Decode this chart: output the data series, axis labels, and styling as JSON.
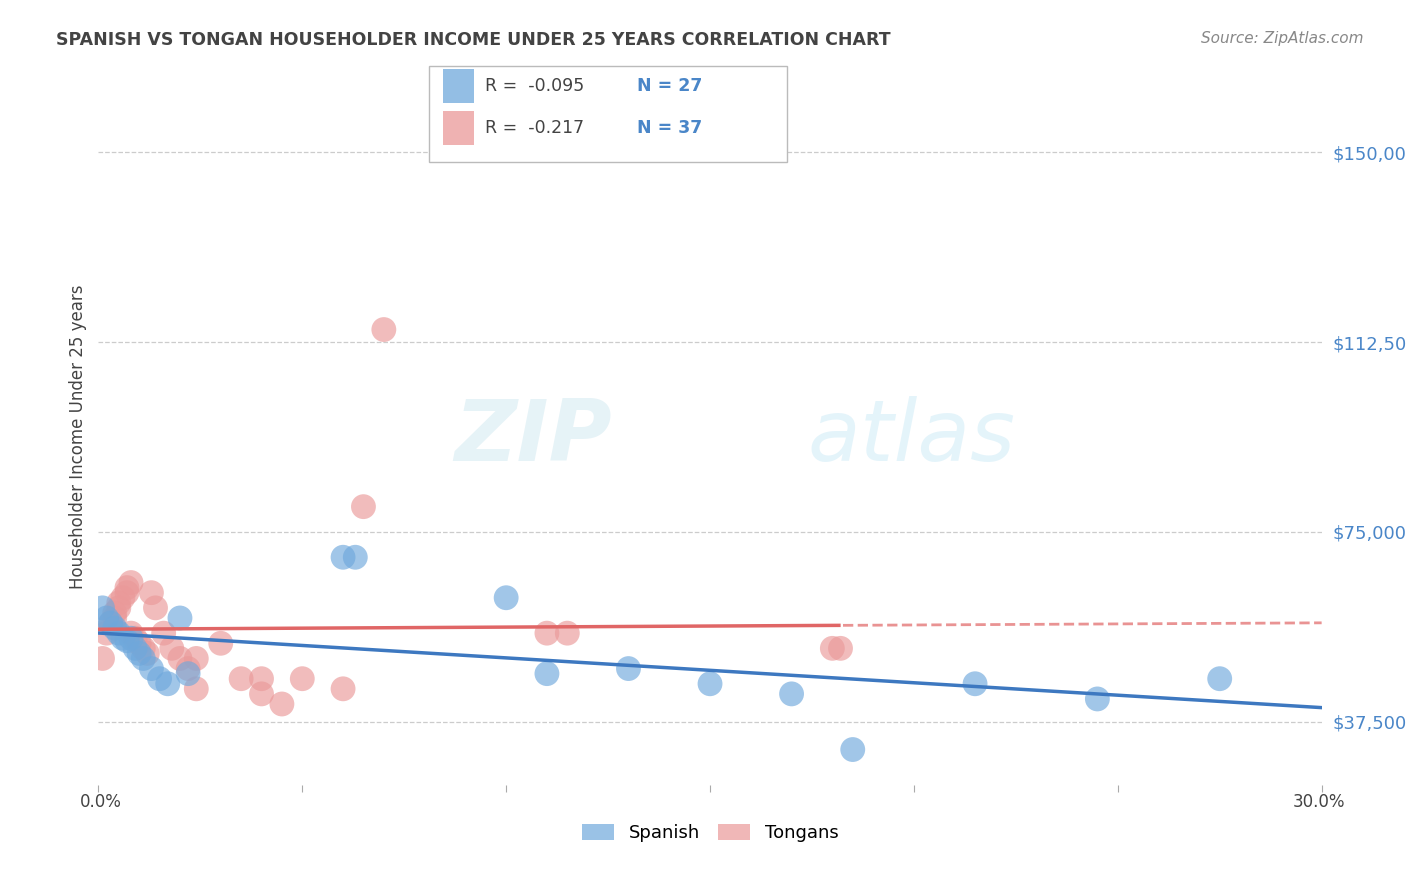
{
  "title": "SPANISH VS TONGAN HOUSEHOLDER INCOME UNDER 25 YEARS CORRELATION CHART",
  "source": "Source: ZipAtlas.com",
  "ylabel": "Householder Income Under 25 years",
  "yticks": [
    37500,
    75000,
    112500,
    150000
  ],
  "ytick_labels": [
    "$37,500",
    "$75,000",
    "$112,500",
    "$150,000"
  ],
  "xlim": [
    0.0,
    0.3
  ],
  "ylim": [
    25000,
    162500
  ],
  "legend_spanish_R": "-0.095",
  "legend_spanish_N": "27",
  "legend_tongan_R": "-0.217",
  "legend_tongan_N": "37",
  "spanish_color": "#6fa8dc",
  "tongan_color": "#ea9999",
  "trendline_spanish_color": "#3d78c0",
  "trendline_tongan_color": "#e06666",
  "background_color": "#ffffff",
  "grid_color": "#cccccc",
  "title_color": "#434343",
  "ylabel_color": "#434343",
  "yaxis_label_color": "#4a86c8",
  "watermark_zip": "ZIP",
  "watermark_atlas": "atlas",
  "spanish_x": [
    0.001,
    0.002,
    0.003,
    0.004,
    0.005,
    0.006,
    0.007,
    0.008,
    0.009,
    0.01,
    0.011,
    0.013,
    0.015,
    0.017,
    0.02,
    0.022,
    0.06,
    0.063,
    0.1,
    0.11,
    0.13,
    0.15,
    0.17,
    0.185,
    0.215,
    0.245,
    0.275
  ],
  "spanish_y": [
    60000,
    58000,
    57000,
    56000,
    55000,
    54000,
    53500,
    54000,
    52000,
    51000,
    50000,
    48000,
    46000,
    45000,
    58000,
    47000,
    70000,
    70000,
    62000,
    47000,
    48000,
    45000,
    43000,
    32000,
    45000,
    42000,
    46000
  ],
  "tongan_x": [
    0.001,
    0.002,
    0.003,
    0.004,
    0.004,
    0.005,
    0.005,
    0.006,
    0.007,
    0.007,
    0.008,
    0.008,
    0.009,
    0.01,
    0.011,
    0.012,
    0.013,
    0.014,
    0.016,
    0.018,
    0.02,
    0.022,
    0.024,
    0.024,
    0.03,
    0.035,
    0.04,
    0.04,
    0.045,
    0.05,
    0.06,
    0.11,
    0.115,
    0.18,
    0.182,
    0.065,
    0.07
  ],
  "tongan_y": [
    50000,
    55000,
    57000,
    58000,
    59000,
    60000,
    61000,
    62000,
    63000,
    64000,
    65000,
    55000,
    54000,
    53000,
    52000,
    51000,
    63000,
    60000,
    55000,
    52000,
    50000,
    48000,
    50000,
    44000,
    53000,
    46000,
    46000,
    43000,
    41000,
    46000,
    44000,
    55000,
    55000,
    52000,
    52000,
    80000,
    115000
  ]
}
